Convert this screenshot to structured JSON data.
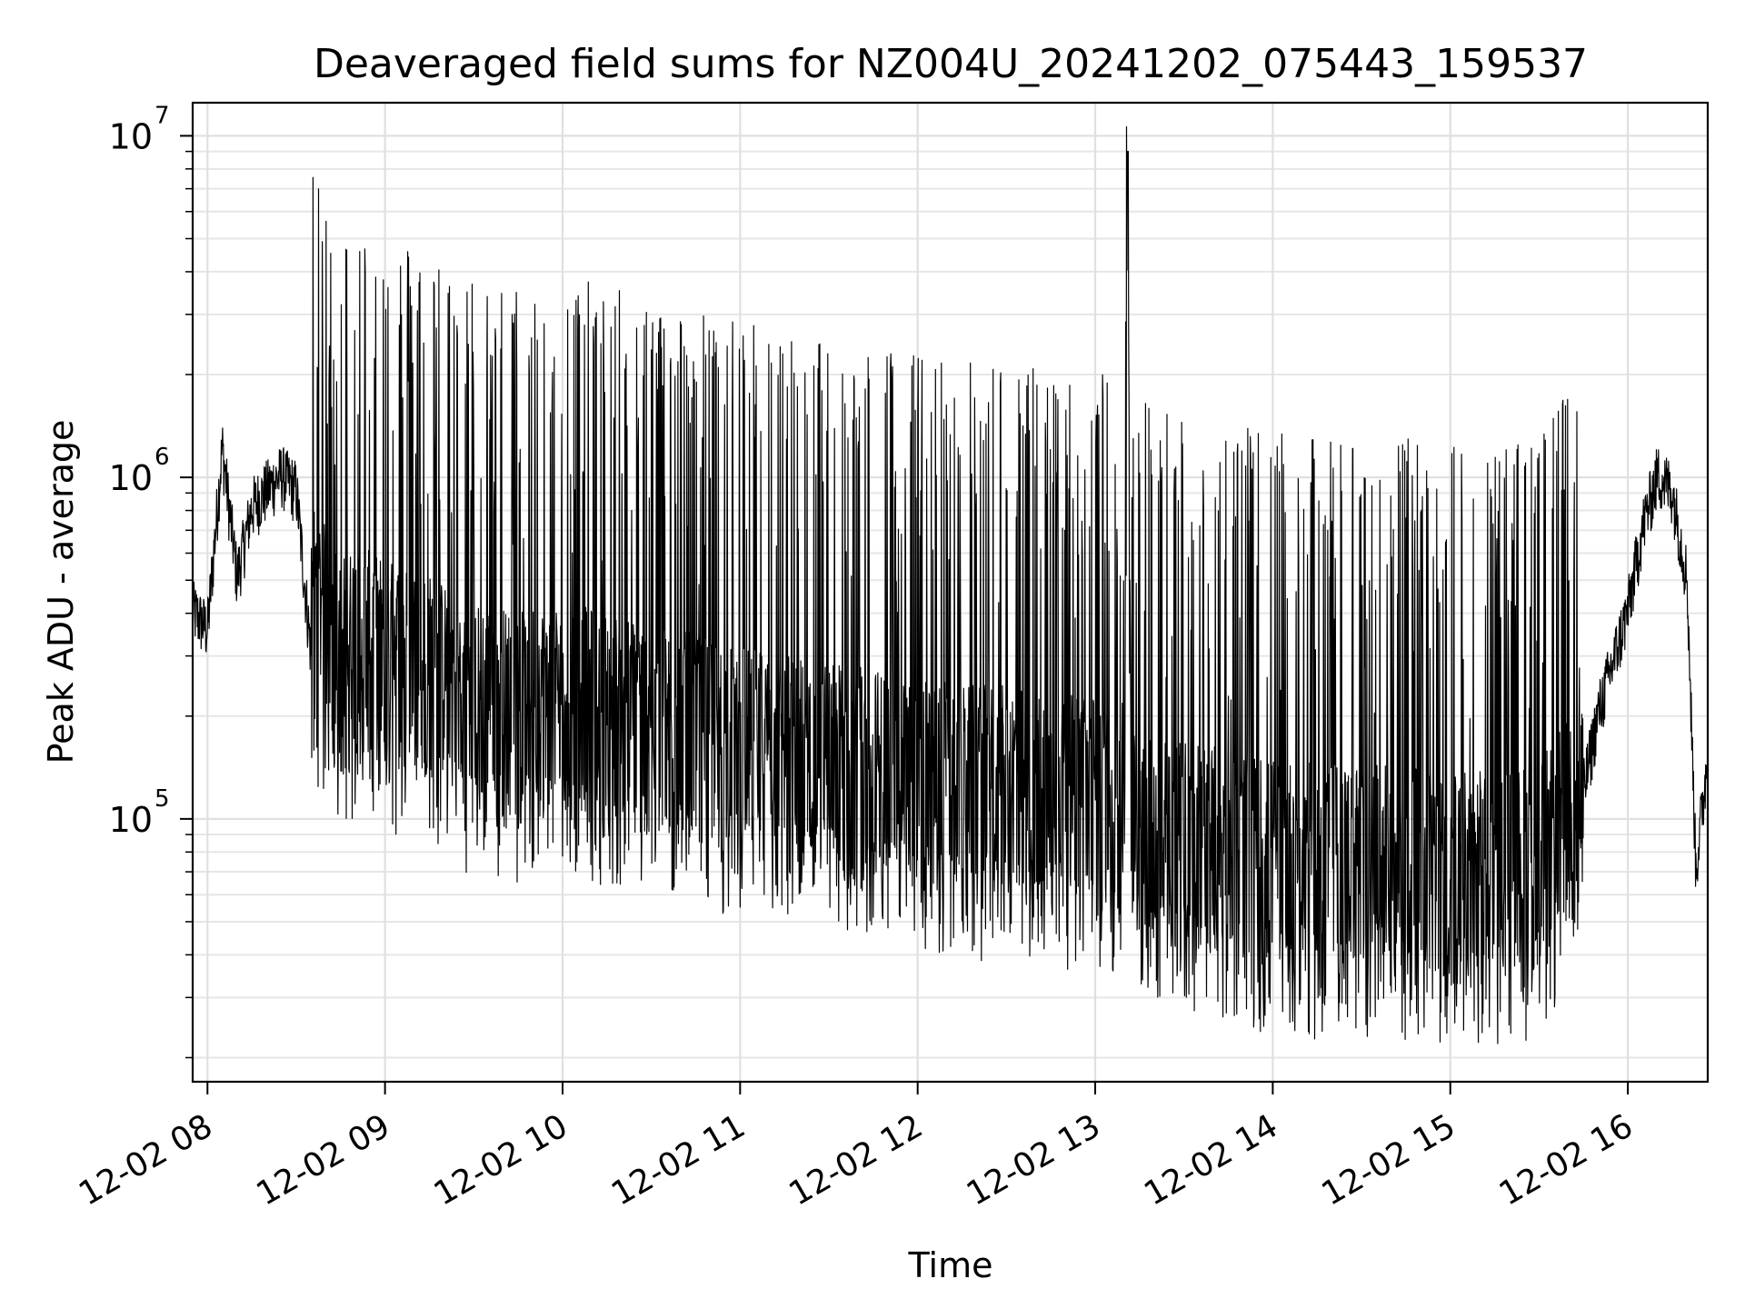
{
  "chart_data": {
    "type": "line",
    "title": "Deaveraged field sums for NZ004U_20241202_075443_159537",
    "xlabel": "Time",
    "ylabel": "Peak ADU - average",
    "yscale": "log",
    "xlim": [
      "2024-12-02 07:55",
      "2024-12-02 16:27"
    ],
    "ylim": [
      17000,
      12500000
    ],
    "grid": true,
    "line_color": "#000000",
    "x_ticks": [
      {
        "value": "2024-12-02 08:00",
        "label": "12-02 08"
      },
      {
        "value": "2024-12-02 09:00",
        "label": "12-02 09"
      },
      {
        "value": "2024-12-02 10:00",
        "label": "12-02 10"
      },
      {
        "value": "2024-12-02 11:00",
        "label": "12-02 11"
      },
      {
        "value": "2024-12-02 12:00",
        "label": "12-02 12"
      },
      {
        "value": "2024-12-02 13:00",
        "label": "12-02 13"
      },
      {
        "value": "2024-12-02 14:00",
        "label": "12-02 14"
      },
      {
        "value": "2024-12-02 15:00",
        "label": "12-02 15"
      },
      {
        "value": "2024-12-02 16:00",
        "label": "12-02 16"
      }
    ],
    "y_ticks": [
      {
        "value": 100000,
        "label": "10",
        "exp": "5"
      },
      {
        "value": 1000000,
        "label": "10",
        "exp": "6"
      },
      {
        "value": 10000000,
        "label": "10",
        "exp": "7"
      }
    ],
    "series": [
      {
        "x": [
          "2024-12-02 07:55",
          "2024-12-02 08:00",
          "2024-12-02 08:05",
          "2024-12-02 08:10",
          "2024-12-02 08:15",
          "2024-12-02 08:20",
          "2024-12-02 08:25",
          "2024-12-02 08:30",
          "2024-12-02 08:35",
          "2024-12-02 08:40",
          "2024-12-02 08:45",
          "2024-12-02 08:50",
          "2024-12-02 09:00",
          "2024-12-02 09:15",
          "2024-12-02 09:30",
          "2024-12-02 09:45",
          "2024-12-02 10:00",
          "2024-12-02 10:15",
          "2024-12-02 10:30",
          "2024-12-02 10:45",
          "2024-12-02 11:00",
          "2024-12-02 11:15",
          "2024-12-02 11:30",
          "2024-12-02 11:45",
          "2024-12-02 12:00",
          "2024-12-02 12:15",
          "2024-12-02 12:30",
          "2024-12-02 12:45",
          "2024-12-02 13:00",
          "2024-12-02 13:10",
          "2024-12-02 13:11",
          "2024-12-02 13:12",
          "2024-12-02 13:15",
          "2024-12-02 13:30",
          "2024-12-02 13:45",
          "2024-12-02 14:00",
          "2024-12-02 14:15",
          "2024-12-02 14:30",
          "2024-12-02 14:45",
          "2024-12-02 15:00",
          "2024-12-02 15:15",
          "2024-12-02 15:30",
          "2024-12-02 15:40",
          "2024-12-02 15:50",
          "2024-12-02 16:00",
          "2024-12-02 16:05",
          "2024-12-02 16:10",
          "2024-12-02 16:15",
          "2024-12-02 16:20",
          "2024-12-02 16:23",
          "2024-12-02 16:27"
        ],
        "y": [
          400000,
          350000,
          1200000,
          500000,
          800000,
          900000,
          1000000,
          900000,
          300000,
          250000,
          200000,
          220000,
          200000,
          180000,
          150000,
          140000,
          150000,
          140000,
          130000,
          120000,
          110000,
          105000,
          100000,
          95000,
          90000,
          85000,
          85000,
          80000,
          80000,
          75000,
          9000000,
          70000,
          70000,
          60000,
          55000,
          52000,
          50000,
          50000,
          50000,
          48000,
          48000,
          50000,
          70000,
          200000,
          400000,
          700000,
          1000000,
          900000,
          500000,
          70000,
          150000
        ]
      }
    ],
    "envelope_note": ""
  }
}
